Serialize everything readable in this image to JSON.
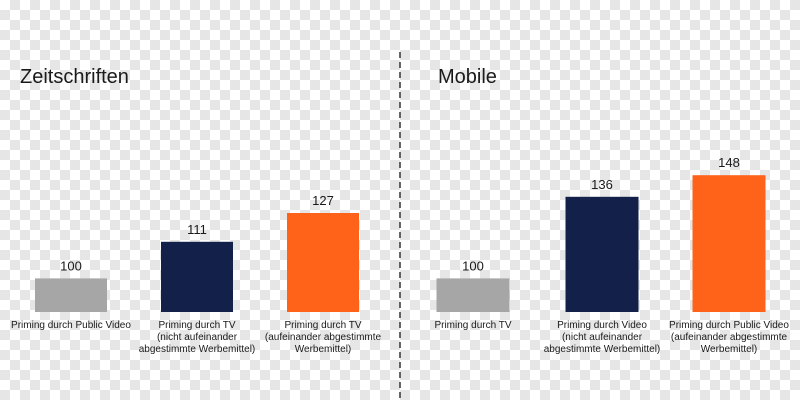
{
  "chart_data": [
    {
      "type": "bar",
      "title": "Zeitschriften",
      "categories": [
        [
          "Priming durch Public Video"
        ],
        [
          "Priming durch TV",
          "(nicht aufeinander",
          "abgestimmte Werbemittel)"
        ],
        [
          "Priming durch TV",
          "(aufeinander abgestimmte",
          "Werbemittel)"
        ]
      ],
      "values": [
        100,
        111,
        127
      ],
      "colors": [
        "#a6a6a6",
        "#13214a",
        "#ff6319"
      ],
      "ylim": [
        0,
        160
      ],
      "grid": false,
      "legend": "none"
    },
    {
      "type": "bar",
      "title": "Mobile",
      "categories": [
        [
          "Priming durch TV"
        ],
        [
          "Priming durch Video",
          "(nicht aufeinander",
          "abgestimmte Werbemittel)"
        ],
        [
          "Priming durch Public Video",
          "(aufeinander abgestimmte",
          "Werbemittel)"
        ]
      ],
      "values": [
        100,
        136,
        148
      ],
      "colors": [
        "#a6a6a6",
        "#13214a",
        "#ff6319"
      ],
      "ylim": [
        0,
        160
      ],
      "grid": false,
      "legend": "none"
    }
  ]
}
